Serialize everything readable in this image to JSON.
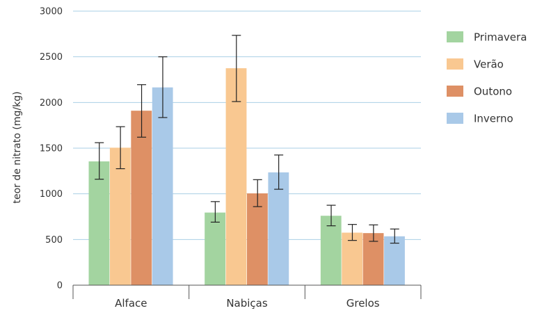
{
  "chart_data": {
    "type": "bar",
    "title": "",
    "xlabel": "",
    "ylabel": "teor de nitrato (mg/kg)",
    "ylim": [
      0,
      3000
    ],
    "yticks": [
      0,
      500,
      1000,
      1500,
      2000,
      2500,
      3000
    ],
    "grid": true,
    "legend_position": "right",
    "categories": [
      "Alface",
      "Nabiças",
      "Grelos"
    ],
    "series": [
      {
        "name": "Primavera",
        "color": "#a3d4a0",
        "values": [
          1355,
          795,
          760
        ],
        "error": [
          [
            1160,
            1560
          ],
          [
            690,
            915
          ],
          [
            650,
            875
          ]
        ]
      },
      {
        "name": "Verão",
        "color": "#f9c891",
        "values": [
          1505,
          2375,
          575
        ],
        "error": [
          [
            1275,
            1735
          ],
          [
            2010,
            2735
          ],
          [
            490,
            665
          ]
        ]
      },
      {
        "name": "Outono",
        "color": "#de9065",
        "values": [
          1910,
          1005,
          570
        ],
        "error": [
          [
            1620,
            2195
          ],
          [
            860,
            1155
          ],
          [
            480,
            660
          ]
        ]
      },
      {
        "name": "Inverno",
        "color": "#a9c9e8",
        "values": [
          2165,
          1235,
          535
        ],
        "error": [
          [
            1835,
            2500
          ],
          [
            1050,
            1425
          ],
          [
            460,
            615
          ]
        ]
      }
    ]
  }
}
